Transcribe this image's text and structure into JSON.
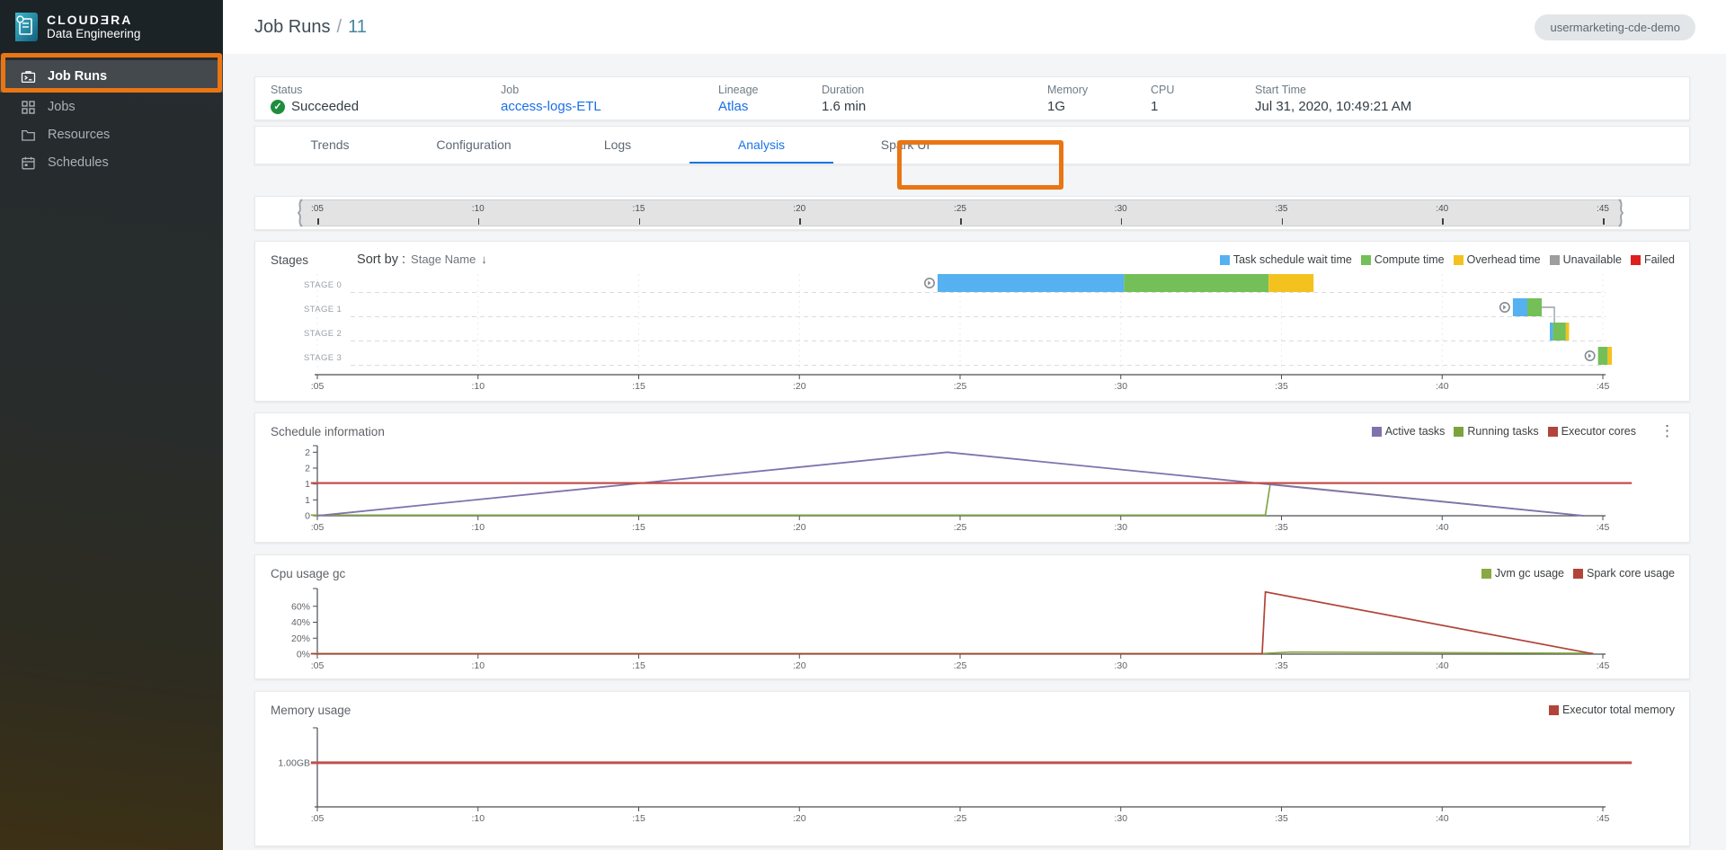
{
  "sidebar": {
    "logo": {
      "title": "CLOUDƎRA",
      "subtitle": "Data Engineering"
    },
    "items": [
      {
        "label": "Job Runs",
        "icon": "job-runs-icon",
        "active": true
      },
      {
        "label": "Jobs",
        "icon": "jobs-icon",
        "active": false
      },
      {
        "label": "Resources",
        "icon": "resources-icon",
        "active": false
      },
      {
        "label": "Schedules",
        "icon": "schedules-icon",
        "active": false
      }
    ]
  },
  "header": {
    "breadcrumb_root": "Job Runs",
    "separator": "/",
    "run_id": "11",
    "env_badge": "usermarketing-cde-demo"
  },
  "summary": {
    "fields": [
      {
        "label": "Status",
        "value": "Succeeded",
        "type": "status"
      },
      {
        "label": "Job",
        "value": "access-logs-ETL",
        "type": "link"
      },
      {
        "label": "Lineage",
        "value": "Atlas",
        "type": "link"
      },
      {
        "label": "Duration",
        "value": "1.6 min",
        "type": "text"
      },
      {
        "label": "Memory",
        "value": "1G",
        "type": "text"
      },
      {
        "label": "CPU",
        "value": "1",
        "type": "text"
      },
      {
        "label": "Start Time",
        "value": "Jul 31, 2020, 10:49:21 AM",
        "type": "text"
      }
    ]
  },
  "tabs": [
    {
      "label": "Trends",
      "active": false
    },
    {
      "label": "Configuration",
      "active": false
    },
    {
      "label": "Logs",
      "active": false
    },
    {
      "label": "Analysis",
      "active": true
    },
    {
      "label": "Spark UI",
      "active": false
    }
  ],
  "timeline": {
    "tick_labels": [
      ":05",
      ":10",
      ":15",
      ":20",
      ":25",
      ":30",
      ":35",
      ":40",
      ":45"
    ],
    "tick_values": [
      5,
      10,
      15,
      20,
      25,
      30,
      35,
      40,
      45
    ]
  },
  "stages_header": {
    "title": "Stages",
    "sort_label": "Sort by :",
    "sort_value": "Stage Name",
    "sort_arrow": "↓"
  },
  "kebab_glyph": "⋮",
  "check_glyph": "✓",
  "chart_data": [
    {
      "type": "gantt",
      "title": "Stages",
      "rows": [
        "STAGE 0",
        "STAGE 1",
        "STAGE 2",
        "STAGE 3"
      ],
      "x_ticks": [
        ":05",
        ":10",
        ":15",
        ":20",
        ":25",
        ":30",
        ":35",
        ":40",
        ":45"
      ],
      "x_values": [
        5,
        10,
        15,
        20,
        25,
        30,
        35,
        40,
        45
      ],
      "legend": [
        {
          "key": "wait",
          "label": "Task schedule wait time",
          "color": "#55b1f0"
        },
        {
          "key": "compute",
          "label": "Compute time",
          "color": "#74bf58"
        },
        {
          "key": "overhead",
          "label": "Overhead time",
          "color": "#f4c21f"
        },
        {
          "key": "unavailable",
          "label": "Unavailable",
          "color": "#9e9e9e"
        },
        {
          "key": "failed",
          "label": "Failed",
          "color": "#de1f1f"
        }
      ],
      "bars": [
        {
          "row": 0,
          "marker": true,
          "start": 24.3,
          "segments": [
            {
              "key": "wait",
              "end": 30.1
            },
            {
              "key": "compute",
              "end": 34.6
            },
            {
              "key": "overhead",
              "end": 36.0
            }
          ]
        },
        {
          "row": 1,
          "marker": true,
          "start": 42.2,
          "connector_down": true,
          "segments": [
            {
              "key": "wait",
              "end": 42.65
            },
            {
              "key": "compute",
              "end": 43.1
            }
          ]
        },
        {
          "row": 2,
          "marker": false,
          "start": 43.35,
          "segments": [
            {
              "key": "wait",
              "end": 43.45
            },
            {
              "key": "compute",
              "end": 43.85
            },
            {
              "key": "overhead",
              "end": 43.95
            }
          ]
        },
        {
          "row": 3,
          "marker": true,
          "start": 44.85,
          "segments": [
            {
              "key": "compute",
              "end": 45.15
            },
            {
              "key": "overhead",
              "end": 45.28
            }
          ]
        }
      ]
    },
    {
      "type": "line",
      "title": "Schedule information",
      "x_ticks": [
        ":05",
        ":10",
        ":15",
        ":20",
        ":25",
        ":30",
        ":35",
        ":40",
        ":45"
      ],
      "x_values": [
        5,
        10,
        15,
        20,
        25,
        30,
        35,
        40,
        45
      ],
      "ylim": [
        0,
        2.15
      ],
      "y_tick_values": [
        0,
        0.5,
        1,
        1.5,
        2
      ],
      "y_tick_labels": [
        "0",
        "1",
        "1",
        "2",
        "2"
      ],
      "legend": [
        {
          "label": "Active tasks",
          "color": "#8172ad"
        },
        {
          "label": "Running tasks",
          "color": "#7ba33c"
        },
        {
          "label": "Executor cores",
          "color": "#b2443a"
        }
      ],
      "series": [
        {
          "name": "Running tasks",
          "color": "#7ba33c",
          "width": 1.6,
          "points": [
            [
              4.8,
              0.02
            ],
            [
              34.5,
              0.02
            ],
            [
              34.65,
              1.0
            ],
            [
              44.4,
              0.0
            ]
          ]
        },
        {
          "name": "Active tasks",
          "color": "#8172ad",
          "width": 1.8,
          "points": [
            [
              5,
              0
            ],
            [
              24.6,
              2
            ],
            [
              44.4,
              0
            ]
          ]
        },
        {
          "name": "Executor cores",
          "color": "#c0504d",
          "width": 2.2,
          "points": [
            [
              4.8,
              1.03
            ],
            [
              45.9,
              1.03
            ]
          ]
        }
      ]
    },
    {
      "type": "line",
      "title": "Cpu usage gc",
      "x_ticks": [
        ":05",
        ":10",
        ":15",
        ":20",
        ":25",
        ":30",
        ":35",
        ":40",
        ":45"
      ],
      "x_values": [
        5,
        10,
        15,
        20,
        25,
        30,
        35,
        40,
        45
      ],
      "ylim": [
        0,
        80
      ],
      "y_tick_values": [
        0,
        20,
        40,
        60
      ],
      "y_tick_labels": [
        "0%",
        "20%",
        "40%",
        "60%"
      ],
      "legend": [
        {
          "label": "Jvm gc usage",
          "color": "#8aa943"
        },
        {
          "label": "Spark core usage",
          "color": "#b2443a"
        }
      ],
      "series": [
        {
          "name": "Jvm gc usage",
          "color": "#8aa943",
          "width": 1.6,
          "points": [
            [
              4.8,
              0.8
            ],
            [
              34.4,
              0.8
            ],
            [
              35.3,
              2.6
            ],
            [
              44.7,
              1.0
            ]
          ]
        },
        {
          "name": "Spark core usage",
          "color": "#b04438",
          "width": 1.7,
          "points": [
            [
              4.8,
              0.3
            ],
            [
              34.4,
              0.3
            ],
            [
              34.5,
              78
            ],
            [
              44.7,
              0.3
            ]
          ]
        }
      ]
    },
    {
      "type": "line",
      "title": "Memory usage",
      "x_ticks": [
        ":05",
        ":10",
        ":15",
        ":20",
        ":25",
        ":30",
        ":35",
        ":40",
        ":45"
      ],
      "x_values": [
        5,
        10,
        15,
        20,
        25,
        30,
        35,
        40,
        45
      ],
      "ylim": [
        0,
        1.75
      ],
      "y_tick_values": [
        1.0
      ],
      "y_tick_labels": [
        "1.00GB"
      ],
      "legend": [
        {
          "label": "Executor total memory",
          "color": "#b2443a"
        }
      ],
      "series": [
        {
          "name": "Executor total memory",
          "color": "#c0504d",
          "width": 3,
          "points": [
            [
              4.8,
              1.0
            ],
            [
              45.9,
              1.0
            ]
          ]
        }
      ]
    }
  ]
}
